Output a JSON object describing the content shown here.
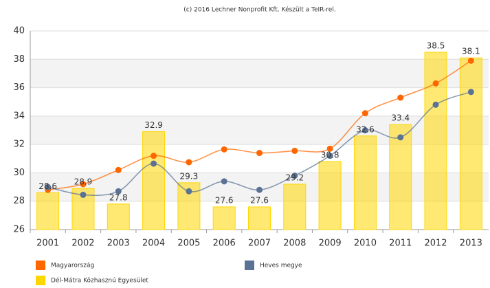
{
  "chart_data": {
    "type": "bar",
    "title": "(c) 2016 Lechner Nonprofit Kft. Készült a TeIR-rel.",
    "categories": [
      "2001",
      "2002",
      "2003",
      "2004",
      "2005",
      "2006",
      "2007",
      "2008",
      "2009",
      "2010",
      "2011",
      "2012",
      "2013"
    ],
    "series": [
      {
        "name": "Dél-Mátra Közhasznú Egyesület",
        "type": "bar",
        "color": "#ffd700",
        "values": [
          28.6,
          28.9,
          27.8,
          32.9,
          29.3,
          27.6,
          27.6,
          29.2,
          30.8,
          32.6,
          33.4,
          38.5,
          38.1
        ]
      },
      {
        "name": "Magyarország",
        "type": "line",
        "color": "#ff6600",
        "values": [
          28.8,
          29.2,
          30.2,
          31.2,
          30.75,
          31.65,
          31.4,
          31.55,
          31.7,
          34.2,
          35.3,
          36.3,
          37.9
        ]
      },
      {
        "name": "Heves megye",
        "type": "line",
        "color": "#5a7394",
        "values": [
          29.0,
          28.45,
          28.7,
          30.65,
          28.7,
          29.4,
          28.8,
          29.8,
          31.2,
          33.0,
          32.5,
          34.8,
          35.7
        ]
      }
    ],
    "ylim": [
      26,
      40
    ],
    "yticks": [
      26,
      28,
      30,
      32,
      34,
      36,
      38,
      40
    ],
    "grid": true,
    "legend": "bottom"
  }
}
